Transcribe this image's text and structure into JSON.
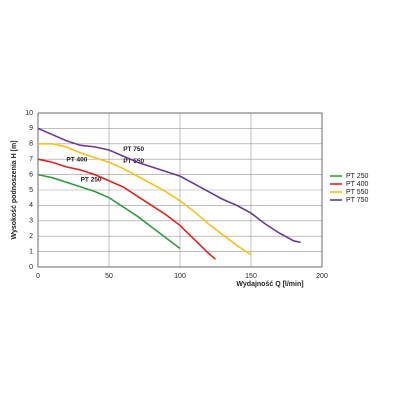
{
  "chart_data": {
    "type": "line",
    "x_label": "Wydajność Q [l/min]",
    "y_label": "Wysokość podnoszenia H [m]",
    "xlim": [
      0,
      200
    ],
    "xticks": [
      0,
      50,
      100,
      150,
      200
    ],
    "ylim": [
      0,
      10
    ],
    "yticks": [
      0,
      1,
      2,
      3,
      4,
      5,
      6,
      7,
      8,
      9,
      10
    ],
    "grid": true,
    "legend": "right",
    "series": [
      {
        "name": "PT 250",
        "color": "#2e9e3e",
        "x": [
          0,
          10,
          20,
          30,
          40,
          50,
          60,
          70,
          80,
          90,
          100
        ],
        "values": [
          6,
          5.8,
          5.5,
          5.2,
          4.9,
          4.5,
          3.9,
          3.3,
          2.6,
          1.9,
          1.2
        ]
      },
      {
        "name": "PT 400",
        "color": "#e32119",
        "x": [
          0,
          10,
          20,
          30,
          40,
          50,
          60,
          70,
          80,
          90,
          100,
          110,
          120,
          125
        ],
        "values": [
          7,
          6.8,
          6.5,
          6.3,
          6.0,
          5.6,
          5.2,
          4.6,
          4.0,
          3.4,
          2.7,
          1.8,
          0.9,
          0.5
        ]
      },
      {
        "name": "PT 550",
        "color": "#f5c218",
        "x": [
          0,
          10,
          20,
          30,
          40,
          50,
          60,
          70,
          80,
          90,
          100,
          110,
          120,
          130,
          140,
          150
        ],
        "values": [
          8,
          8,
          7.8,
          7.4,
          7.1,
          6.8,
          6.4,
          5.9,
          5.4,
          4.9,
          4.3,
          3.6,
          2.8,
          2.1,
          1.4,
          0.8
        ]
      },
      {
        "name": "PT 750",
        "color": "#6a3a93",
        "x": [
          0,
          10,
          20,
          30,
          40,
          50,
          60,
          70,
          80,
          90,
          100,
          110,
          120,
          130,
          140,
          150,
          160,
          170,
          180,
          185
        ],
        "values": [
          9,
          8.6,
          8.2,
          7.9,
          7.8,
          7.6,
          7.2,
          6.8,
          6.5,
          6.2,
          5.9,
          5.4,
          4.9,
          4.4,
          4.0,
          3.5,
          2.8,
          2.2,
          1.7,
          1.6
        ]
      }
    ]
  }
}
